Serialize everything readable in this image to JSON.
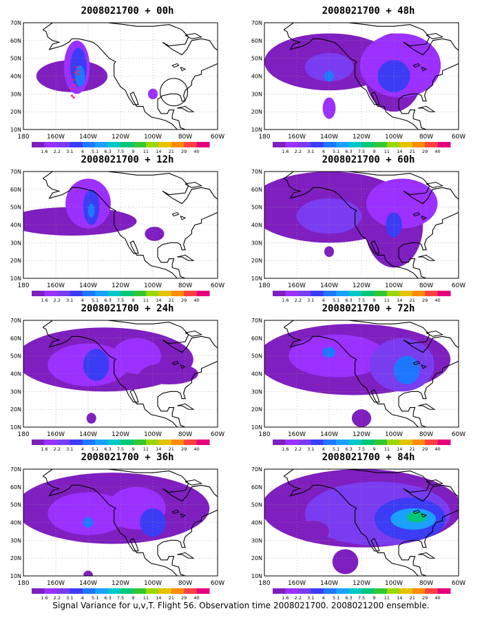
{
  "panels": [
    {
      "title": "2008021700 + 00h"
    },
    {
      "title": "2008021700 + 48h"
    },
    {
      "title": "2008021700 + 12h"
    },
    {
      "title": "2008021700 + 60h"
    },
    {
      "title": "2008021700 + 24h"
    },
    {
      "title": "2008021700 + 72h"
    },
    {
      "title": "2008021700 + 36h"
    },
    {
      "title": "2008021700 + 84h"
    }
  ],
  "lat_labels": [
    "70N",
    "60N",
    "50N",
    "40N",
    "30N",
    "20N",
    "10N"
  ],
  "lon_labels": [
    "180",
    "160W",
    "140W",
    "120W",
    "100W",
    "80W",
    "60W"
  ],
  "legend": {
    "labels": [
      "1.6",
      "2.2",
      "3.1",
      "4",
      "5.1",
      "6.3",
      "7.5",
      "9",
      "11",
      "14",
      "21",
      "29",
      "40"
    ],
    "colors": [
      "#7f1fbf",
      "#9b30ff",
      "#7a3cf0",
      "#3c3cf5",
      "#1e78ff",
      "#1aa0ff",
      "#00c8c8",
      "#00c878",
      "#32c832",
      "#9bd700",
      "#e6c300",
      "#ff8c00",
      "#ff4040",
      "#e6007e"
    ]
  },
  "caption": "Signal Variance for u,v,T. Flight 56. Observation time 2008021700. 2008021200 ensemble."
}
